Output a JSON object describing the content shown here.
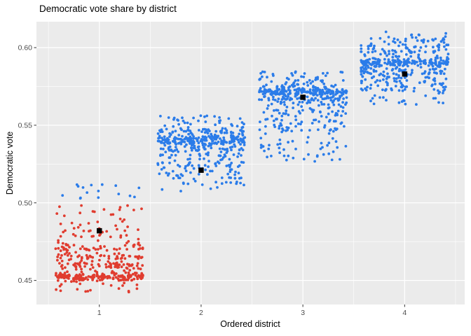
{
  "title": "Democratic vote share by district",
  "chart_data": {
    "type": "scatter",
    "title": "Democratic vote share by district",
    "xlabel": "Ordered district",
    "ylabel": "Democratic vote",
    "x_tick_values": [
      1,
      2,
      3,
      4
    ],
    "x_tick_labels": [
      "1",
      "2",
      "3",
      "4"
    ],
    "y_tick_values": [
      0.45,
      0.5,
      0.55,
      0.6
    ],
    "y_tick_labels": [
      "0.45",
      "0.50",
      "0.55",
      "0.60"
    ],
    "x_minor": [
      0.5,
      1.5,
      2.5,
      3.5,
      4.5
    ],
    "y_minor": [
      0.475,
      0.525,
      0.575
    ],
    "xlim": [
      0.382,
      4.59
    ],
    "ylim": [
      0.4345,
      0.6167
    ],
    "grid": true,
    "legend": "none",
    "threshold": 0.5,
    "jitter_half_width": 0.43,
    "point_radius": 1.9,
    "seed": 20240807,
    "colors": {
      "below_threshold": "#E03C2F",
      "above_threshold": "#2B7CE9",
      "mean_marker": "#000000",
      "panel_bg": "#EBEBEB",
      "grid": "#FFFFFF",
      "tick_text": "#4D4D4D",
      "axis_text": "#000000"
    },
    "mean_markers": [
      {
        "x": 1,
        "y": 0.482
      },
      {
        "x": 2,
        "y": 0.521
      },
      {
        "x": 3,
        "y": 0.568
      },
      {
        "x": 4,
        "y": 0.583
      }
    ],
    "districts": [
      {
        "x": 1,
        "mean_vote": 0.482,
        "components": [
          {
            "type": "band",
            "y": 0.4525,
            "sd": 0.0014,
            "n": 165
          },
          {
            "type": "band",
            "y": 0.46,
            "sd": 0.0012,
            "n": 55
          },
          {
            "type": "band",
            "y": 0.4655,
            "sd": 0.0012,
            "n": 45
          },
          {
            "type": "band",
            "y": 0.4703,
            "sd": 0.0011,
            "n": 40
          },
          {
            "type": "uniform",
            "lo": 0.4415,
            "hi": 0.4505,
            "n": 22
          },
          {
            "type": "uniform",
            "lo": 0.455,
            "hi": 0.459,
            "n": 16
          },
          {
            "type": "uniform",
            "lo": 0.462,
            "hi": 0.4645,
            "n": 8
          },
          {
            "type": "uniform",
            "lo": 0.472,
            "hi": 0.484,
            "n": 40
          },
          {
            "type": "uniform",
            "lo": 0.484,
            "hi": 0.499,
            "n": 26
          },
          {
            "type": "uniform",
            "lo": 0.5025,
            "hi": 0.512,
            "n": 16
          }
        ]
      },
      {
        "x": 2,
        "mean_vote": 0.521,
        "components": [
          {
            "type": "band",
            "y": 0.541,
            "sd": 0.0015,
            "n": 150
          },
          {
            "type": "band",
            "y": 0.5452,
            "sd": 0.001,
            "n": 35
          },
          {
            "type": "band",
            "y": 0.5128,
            "sd": 0.0006,
            "n": 12
          },
          {
            "type": "uniform",
            "lo": 0.515,
            "hi": 0.539,
            "n": 140
          },
          {
            "type": "uniform",
            "lo": 0.533,
            "hi": 0.54,
            "n": 40
          },
          {
            "type": "uniform",
            "lo": 0.546,
            "hi": 0.5565,
            "n": 55
          },
          {
            "type": "uniform",
            "lo": 0.507,
            "hi": 0.5125,
            "n": 5
          }
        ]
      },
      {
        "x": 3,
        "mean_vote": 0.568,
        "components": [
          {
            "type": "band",
            "y": 0.5715,
            "sd": 0.0013,
            "n": 150
          },
          {
            "type": "band",
            "y": 0.5663,
            "sd": 0.001,
            "n": 40
          },
          {
            "type": "uniform",
            "lo": 0.545,
            "hi": 0.565,
            "n": 115
          },
          {
            "type": "uniform",
            "lo": 0.566,
            "hi": 0.5845,
            "n": 115
          },
          {
            "type": "uniform",
            "lo": 0.5265,
            "hi": 0.545,
            "n": 45
          }
        ]
      },
      {
        "x": 4,
        "mean_vote": 0.583,
        "components": [
          {
            "type": "band",
            "y": 0.59,
            "sd": 0.0013,
            "n": 150
          },
          {
            "type": "band",
            "y": 0.5853,
            "sd": 0.001,
            "n": 40
          },
          {
            "type": "uniform",
            "lo": 0.572,
            "hi": 0.5845,
            "n": 105
          },
          {
            "type": "uniform",
            "lo": 0.5905,
            "hi": 0.606,
            "n": 125
          },
          {
            "type": "uniform",
            "lo": 0.563,
            "hi": 0.572,
            "n": 22
          },
          {
            "type": "uniform",
            "lo": 0.606,
            "hi": 0.6105,
            "n": 10
          }
        ]
      }
    ]
  }
}
